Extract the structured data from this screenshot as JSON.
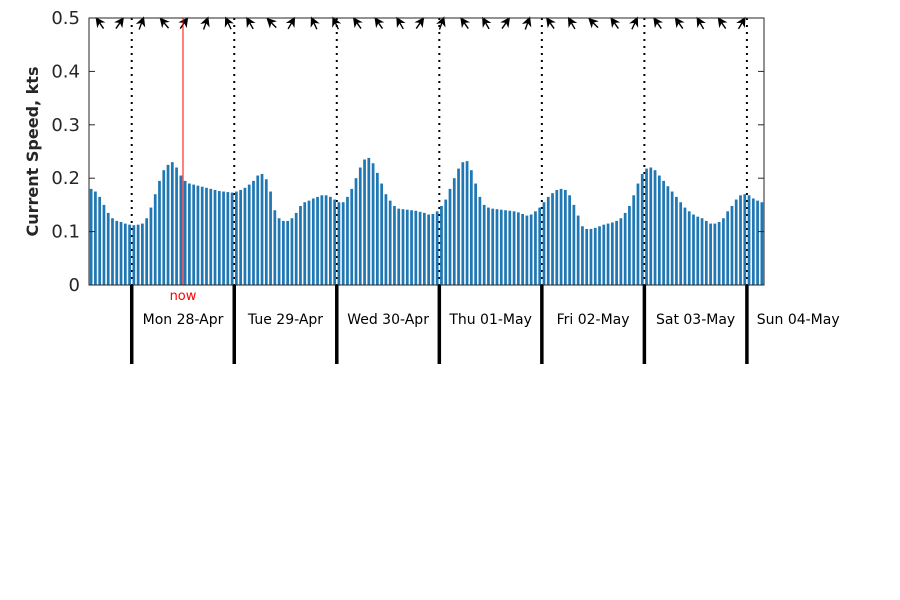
{
  "chart_data": {
    "type": "bar",
    "ylabel": "Current Speed, kts",
    "ylim": [
      0,
      0.5
    ],
    "yticks": [
      "0",
      "0.1",
      "0.2",
      "0.3",
      "0.4",
      "0.5"
    ],
    "bar_color": "#1f77b4",
    "now_label": "now",
    "now_color": "#ff0000",
    "day_labels": [
      "Mon 28-Apr",
      "Tue 29-Apr",
      "Wed 30-Apr",
      "Thu 01-May",
      "Fri 02-May",
      "Sat 03-May",
      "Sun 04-May"
    ],
    "values": [
      0.18,
      0.175,
      0.165,
      0.15,
      0.135,
      0.125,
      0.12,
      0.118,
      0.115,
      0.113,
      0.112,
      0.113,
      0.115,
      0.125,
      0.145,
      0.17,
      0.195,
      0.215,
      0.225,
      0.23,
      0.22,
      0.205,
      0.195,
      0.19,
      0.188,
      0.186,
      0.184,
      0.182,
      0.18,
      0.178,
      0.176,
      0.175,
      0.174,
      0.173,
      0.175,
      0.178,
      0.182,
      0.188,
      0.195,
      0.205,
      0.208,
      0.198,
      0.175,
      0.14,
      0.125,
      0.12,
      0.12,
      0.125,
      0.135,
      0.148,
      0.155,
      0.158,
      0.162,
      0.165,
      0.168,
      0.168,
      0.165,
      0.16,
      0.155,
      0.155,
      0.165,
      0.18,
      0.2,
      0.22,
      0.235,
      0.238,
      0.228,
      0.21,
      0.19,
      0.17,
      0.158,
      0.148,
      0.143,
      0.142,
      0.141,
      0.14,
      0.139,
      0.137,
      0.135,
      0.132,
      0.133,
      0.138,
      0.148,
      0.16,
      0.18,
      0.2,
      0.218,
      0.23,
      0.232,
      0.215,
      0.19,
      0.165,
      0.15,
      0.145,
      0.143,
      0.142,
      0.141,
      0.14,
      0.139,
      0.138,
      0.136,
      0.133,
      0.13,
      0.132,
      0.138,
      0.145,
      0.155,
      0.165,
      0.172,
      0.178,
      0.18,
      0.178,
      0.168,
      0.15,
      0.13,
      0.11,
      0.105,
      0.105,
      0.107,
      0.11,
      0.113,
      0.115,
      0.117,
      0.12,
      0.125,
      0.135,
      0.148,
      0.168,
      0.19,
      0.208,
      0.218,
      0.22,
      0.215,
      0.205,
      0.195,
      0.185,
      0.175,
      0.165,
      0.155,
      0.145,
      0.138,
      0.132,
      0.128,
      0.125,
      0.12,
      0.115,
      0.115,
      0.118,
      0.125,
      0.138,
      0.148,
      0.16,
      0.168,
      0.17,
      0.168,
      0.162,
      0.158,
      0.155
    ],
    "direction_arrows_deg": [
      -35,
      35,
      20,
      -40,
      35,
      20,
      -25,
      -30,
      -45,
      30,
      -25,
      -25,
      -35,
      -35,
      -30,
      35,
      20,
      -35,
      -30,
      35,
      20,
      -35,
      -30,
      -45,
      -35,
      25,
      -35,
      -35,
      -30,
      -35,
      30
    ]
  }
}
